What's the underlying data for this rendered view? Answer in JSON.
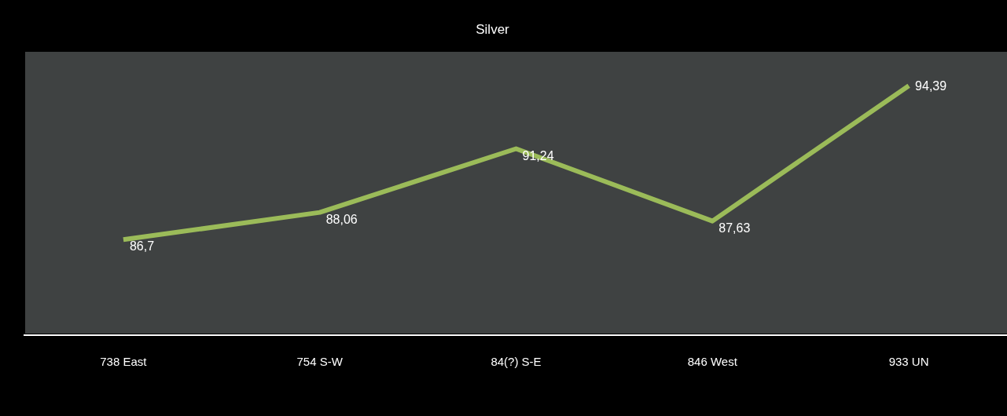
{
  "chart_data": {
    "type": "line",
    "title": "Silver",
    "categories": [
      "738 East",
      "754 S-W",
      "84(?) S-E",
      "846 West",
      "933 UN"
    ],
    "series": [
      {
        "color": "#9bbb59",
        "values": [
          86.7,
          88.06,
          91.24,
          87.63,
          94.39
        ],
        "value_labels": [
          "86,7",
          "88,06",
          "91,24",
          "87,63",
          "94,39"
        ]
      }
    ],
    "marker": "none",
    "line_style": "solid"
  }
}
